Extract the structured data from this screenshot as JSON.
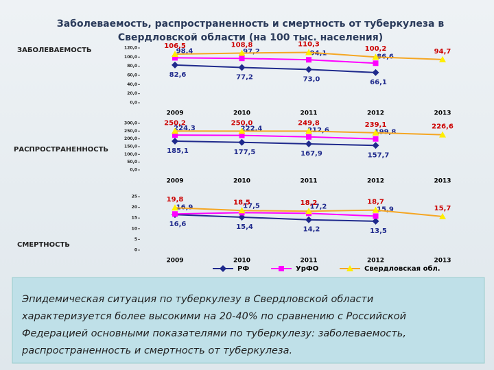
{
  "header": {
    "title_lines": [
      "Заболеваемость, распространенность и смертность от туберкулеза в",
      "Свердловской области (на 100 тыс. населения)"
    ]
  },
  "chart_data": [
    {
      "type": "line",
      "title": "ЗАБОЛЕВАЕМОСТЬ",
      "categories": [
        "2009",
        "2010",
        "2011",
        "2012",
        "2013"
      ],
      "ylim": [
        0,
        120
      ],
      "yticks": [
        {
          "value": 0,
          "label": "0,0"
        },
        {
          "value": 20,
          "label": "20,0"
        },
        {
          "value": 40,
          "label": "40,0"
        },
        {
          "value": 60,
          "label": "60,0"
        },
        {
          "value": 80,
          "label": "80,0"
        },
        {
          "value": 100,
          "label": "100,0"
        },
        {
          "value": 120,
          "label": "120,0"
        }
      ],
      "series": [
        {
          "color": "#1f2a8c",
          "marker": "diamond",
          "values": [
            82.6,
            77.2,
            73.0,
            66.1,
            null
          ],
          "value_labels": [
            "82,6",
            "77,2",
            "73,0",
            "66,1",
            null
          ]
        },
        {
          "color": "#ff00ff",
          "marker": "square",
          "values": [
            98.4,
            97.2,
            94.1,
            86.6,
            null
          ],
          "value_labels": [
            "98,4",
            "97,2",
            "94,1",
            "86,6",
            null
          ]
        },
        {
          "color": "#f5a623",
          "marker": "triangle",
          "values": [
            106.5,
            108.8,
            110.3,
            100.2,
            94.7
          ],
          "value_labels": [
            "106,5",
            "108,8",
            "110,3",
            "100,2",
            "94,7"
          ]
        }
      ]
    },
    {
      "type": "line",
      "title": "РАСПРОСТРАНЕННОСТЬ",
      "categories": [
        "2009",
        "2010",
        "2011",
        "2012",
        "2013"
      ],
      "ylim": [
        0,
        300
      ],
      "yticks": [
        {
          "value": 0,
          "label": "0,0"
        },
        {
          "value": 50,
          "label": "50,0"
        },
        {
          "value": 100,
          "label": "100,0"
        },
        {
          "value": 150,
          "label": "150,0"
        },
        {
          "value": 200,
          "label": "200,0"
        },
        {
          "value": 250,
          "label": "250,0"
        },
        {
          "value": 300,
          "label": "300,0"
        }
      ],
      "series": [
        {
          "color": "#1f2a8c",
          "marker": "diamond",
          "values": [
            185.1,
            177.5,
            167.9,
            157.7,
            null
          ],
          "value_labels": [
            "185,1",
            "177,5",
            "167,9",
            "157,7",
            null
          ]
        },
        {
          "color": "#ff00ff",
          "marker": "square",
          "values": [
            224.3,
            222.4,
            212.6,
            199.8,
            null
          ],
          "value_labels": [
            "224,3",
            "222,4",
            "212,6",
            "199,8",
            null
          ]
        },
        {
          "color": "#f5a623",
          "marker": "triangle",
          "values": [
            250.2,
            250.0,
            249.8,
            239.1,
            226.6
          ],
          "value_labels": [
            "250,2",
            "250,0",
            "249,8",
            "239,1",
            "226,6"
          ]
        }
      ]
    },
    {
      "type": "line",
      "title": "СМЕРТНОСТЬ",
      "categories": [
        "2009",
        "2010",
        "2011",
        "2012",
        "2013"
      ],
      "ylim": [
        0,
        25
      ],
      "yticks": [
        0,
        5,
        10,
        15,
        20,
        25
      ],
      "legend": "bottom",
      "series": [
        {
          "name": "РФ",
          "color": "#1f2a8c",
          "marker": "diamond",
          "values": [
            16.6,
            15.4,
            14.2,
            13.5,
            null
          ],
          "value_labels": [
            "16,6",
            "15,4",
            "14,2",
            "13,5",
            null
          ]
        },
        {
          "name": "УрФО",
          "color": "#ff00ff",
          "marker": "square",
          "values": [
            16.9,
            17.5,
            17.2,
            15.9,
            null
          ],
          "value_labels": [
            "16,9",
            "17,5",
            "17,2",
            "15,9",
            null
          ]
        },
        {
          "name": "Свердловская обл.",
          "color": "#f5a623",
          "marker": "triangle",
          "values": [
            19.8,
            18.5,
            18.2,
            18.7,
            15.7
          ],
          "value_labels": [
            "19,8",
            "18,5",
            "18,2",
            "18,7",
            "15,7"
          ]
        }
      ]
    }
  ],
  "note": {
    "lines": [
      "Эпидемическая ситуация по туберкулезу в Свердловской области",
      "характеризуется более высокими на 20-40% по сравнению с Российской",
      "Федерацией основными показателями по туберкулезу: заболеваемость,",
      "распространенность и смертность от туберкулеза."
    ]
  }
}
